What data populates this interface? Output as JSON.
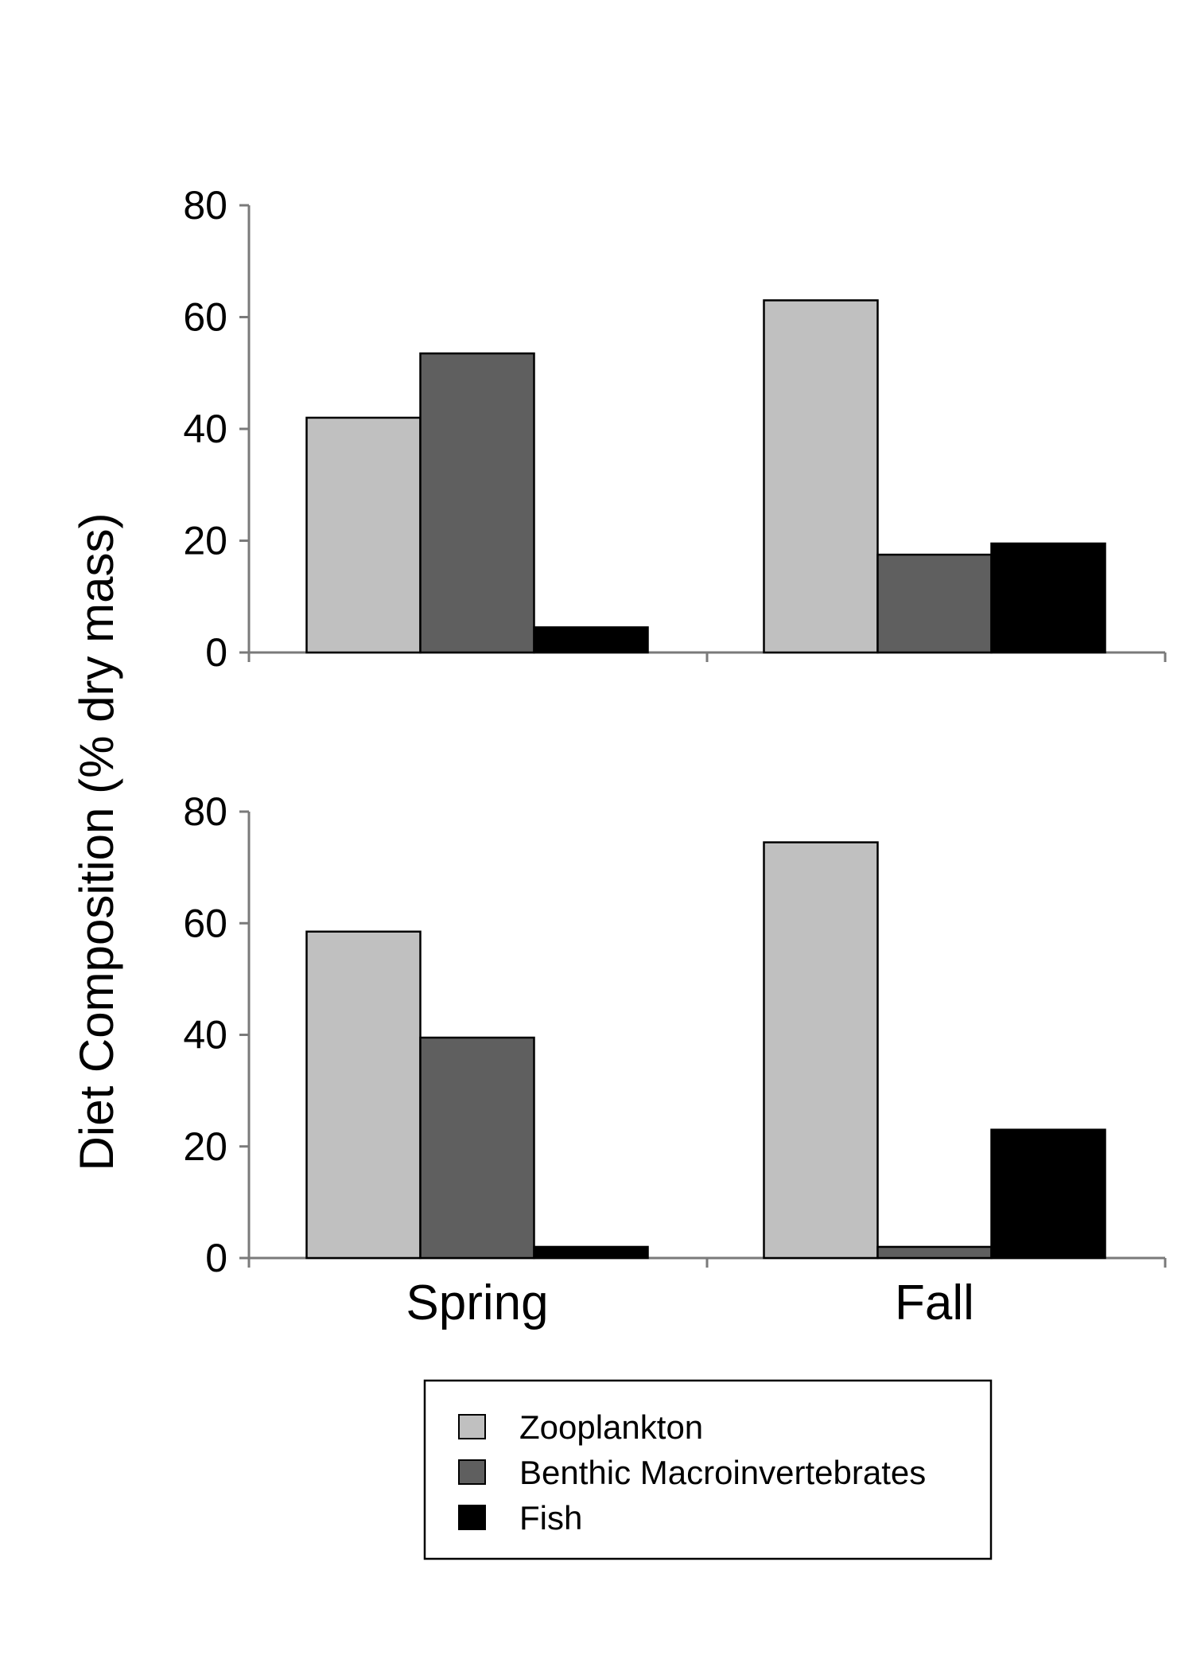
{
  "chart_data": {
    "type": "bar",
    "ylabel": "Diet Composition (% dry mass)",
    "categories": [
      "Spring",
      "Fall"
    ],
    "ylim": [
      0,
      80
    ],
    "yticks": [
      0,
      20,
      40,
      60,
      80
    ],
    "series_info": [
      {
        "name": "Zooplankton",
        "color": "#c0c0c0"
      },
      {
        "name": "Benthic Macroinvertebrates",
        "color": "#5f5f5f"
      },
      {
        "name": "Fish",
        "color": "#000000"
      }
    ],
    "legend_position": "bottom-center",
    "grid": false,
    "panels": [
      {
        "series": [
          {
            "name": "Zooplankton",
            "values": [
              42,
              63
            ]
          },
          {
            "name": "Benthic Macroinvertebrates",
            "values": [
              53.5,
              17.5
            ]
          },
          {
            "name": "Fish",
            "values": [
              4.5,
              19.5
            ]
          }
        ]
      },
      {
        "series": [
          {
            "name": "Zooplankton",
            "values": [
              58.5,
              74.5
            ]
          },
          {
            "name": "Benthic Macroinvertebrates",
            "values": [
              39.5,
              2
            ]
          },
          {
            "name": "Fish",
            "values": [
              2,
              23
            ]
          }
        ]
      }
    ]
  }
}
